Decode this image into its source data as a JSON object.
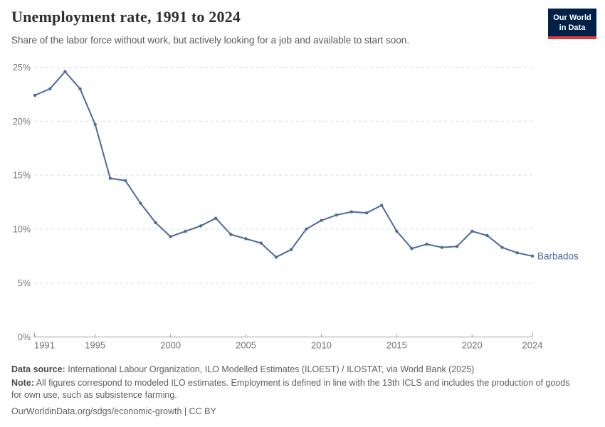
{
  "header": {
    "title": "Unemployment rate, 1991 to 2024",
    "subtitle": "Share of the labor force without work, but actively looking for a job and available to start soon.",
    "logo": {
      "line1": "Our World",
      "line2": "in Data",
      "bg_color": "#002147",
      "accent_color": "#e0393e"
    }
  },
  "chart_data": {
    "type": "line",
    "title": "Unemployment rate, 1991 to 2024",
    "xlabel": "",
    "ylabel": "",
    "xlim": [
      1991,
      2024
    ],
    "ylim": [
      0,
      25
    ],
    "grid": "horizontal-dashed",
    "legend_position": "end-of-line-label",
    "years": [
      1991,
      1992,
      1993,
      1994,
      1995,
      1996,
      1997,
      1998,
      1999,
      2000,
      2001,
      2002,
      2003,
      2004,
      2005,
      2006,
      2007,
      2008,
      2009,
      2010,
      2011,
      2012,
      2013,
      2014,
      2015,
      2016,
      2017,
      2018,
      2019,
      2020,
      2021,
      2022,
      2023,
      2024
    ],
    "series": [
      {
        "name": "Barbados",
        "color": "#4c6a9c",
        "values": [
          22.4,
          23.0,
          24.6,
          23.0,
          19.7,
          14.7,
          14.5,
          12.4,
          10.6,
          9.3,
          9.8,
          10.3,
          11.0,
          9.5,
          9.1,
          8.7,
          7.4,
          8.1,
          10.0,
          10.8,
          11.3,
          11.6,
          11.5,
          12.2,
          9.8,
          8.2,
          8.6,
          8.3,
          8.4,
          9.8,
          9.4,
          8.3,
          7.8,
          7.5
        ]
      }
    ],
    "yticks": [
      {
        "value": 0,
        "label": "0%"
      },
      {
        "value": 5,
        "label": "5%"
      },
      {
        "value": 10,
        "label": "10%"
      },
      {
        "value": 15,
        "label": "15%"
      },
      {
        "value": 20,
        "label": "20%"
      },
      {
        "value": 25,
        "label": "25%"
      }
    ],
    "xticks": [
      1991,
      1995,
      2000,
      2005,
      2010,
      2015,
      2020,
      2024
    ]
  },
  "footer": {
    "source_label": "Data source:",
    "source_text": "International Labour Organization, ILO Modelled Estimates (ILOEST) / ILOSTAT, via World Bank (2025)",
    "note_label": "Note:",
    "note_text": "All figures correspond to modeled ILO estimates. Employment is defined in line with the 13th ICLS and includes the production of goods for own use, such as subsistence farming.",
    "link_text": "OurWorldinData.org/sdgs/economic-growth | CC BY"
  },
  "colors": {
    "line": "#4c6a9c",
    "grid": "#dcdcdc",
    "axis": "#9e9e9e",
    "tick_label": "#757575",
    "title": "#2f2f2f",
    "subtitle": "#595959",
    "footer": "#5f5f5f"
  }
}
